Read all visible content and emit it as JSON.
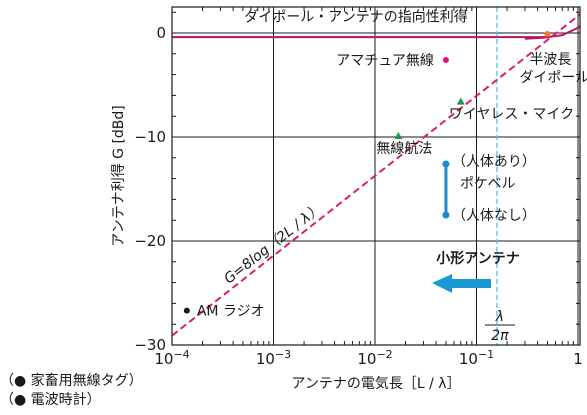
{
  "chart_data": {
    "type": "line",
    "x_scale": "log",
    "xlim": [
      0.0001,
      2
    ],
    "ylim": [
      -30,
      2.5
    ],
    "x_ticks": [
      {
        "value": 0.0001,
        "base": "10",
        "exp": "−4"
      },
      {
        "value": 0.001,
        "base": "10",
        "exp": "−3"
      },
      {
        "value": 0.01,
        "base": "10",
        "exp": "−2"
      },
      {
        "value": 0.1,
        "base": "10",
        "exp": "−1"
      },
      {
        "value": 1,
        "base": "1",
        "exp": ""
      }
    ],
    "y_ticks": [
      {
        "value": 0,
        "label": "0"
      },
      {
        "value": -10,
        "label": "−10"
      },
      {
        "value": -20,
        "label": "−20"
      },
      {
        "value": -30,
        "label": "−30"
      }
    ],
    "xlabel": "アンテナの電気長［L / λ］",
    "ylabel": "アンテナ利得 G [dBd]",
    "dipole_gain_label": "ダイポール・アンテナの指向性利得",
    "dipole_gain_level": -0.4,
    "formula_line": {
      "label": "G=8log（2L / λ）",
      "x": [
        0.0001,
        1.8
      ],
      "y": [
        -29.1,
        3.6
      ]
    },
    "dipole_curve": {
      "x": [
        0.3,
        0.45,
        0.7,
        1.0,
        1.3,
        1.8
      ],
      "y": [
        -0.55,
        -0.45,
        -0.2,
        0.5,
        1.4,
        3.0
      ]
    },
    "lambda_marker": {
      "value": 0.159,
      "numerator": "λ",
      "denominator": "2π"
    },
    "points": [
      {
        "label": "AM ラジオ",
        "x": 0.00014,
        "y": -26.7,
        "color": "#1a1a1a",
        "marker": "circle"
      },
      {
        "label": "無線航法",
        "x": 0.017,
        "y": -9.9,
        "color": "#1a9a50",
        "marker": "triangle"
      },
      {
        "label": "アマチュア無線",
        "x": 0.05,
        "y": -2.6,
        "color": "#e0127a",
        "marker": "circle"
      },
      {
        "label": "ワイヤレス・マイク",
        "x": 0.07,
        "y": -6.6,
        "color": "#1a9a50",
        "marker": "triangle"
      },
      {
        "label": "半波長\nダイポール",
        "x": 0.5,
        "y": -0.1,
        "color": "#f07828",
        "marker": "circle"
      }
    ],
    "pocket_bell": {
      "label": "ポケベル",
      "x": 0.05,
      "with_body": {
        "label": "（人体あり）",
        "y": -12.6
      },
      "without_body": {
        "label": "（人体なし）",
        "y": -17.5
      },
      "color": "#1a8ad4"
    },
    "small_antenna": {
      "label": "小形アンテナ",
      "color": "#1a9ad4"
    }
  },
  "notes": [
    "（● 家畜用無線タグ）",
    "（● 電波時計）"
  ]
}
